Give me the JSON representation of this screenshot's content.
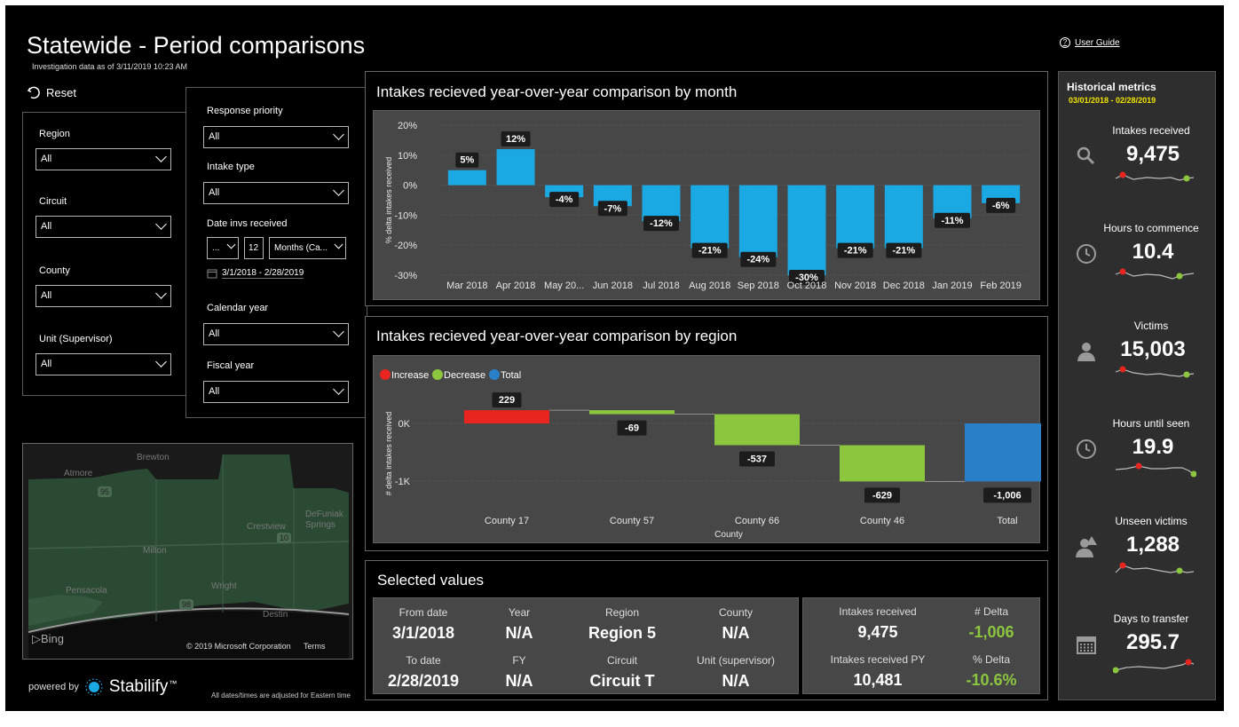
{
  "header": {
    "title": "Statewide - Period comparisons",
    "subtitle": "Investigation data as of 3/11/2019 10:23 AM",
    "user_guide": "User Guide",
    "reset": "Reset"
  },
  "filters_left": [
    {
      "label": "Region",
      "value": "All"
    },
    {
      "label": "Circuit",
      "value": "All"
    },
    {
      "label": "County",
      "value": "All"
    },
    {
      "label": "Unit (Supervisor)",
      "value": "All"
    }
  ],
  "filters_right": {
    "response_priority": {
      "label": "Response priority",
      "value": "All"
    },
    "intake_type": {
      "label": "Intake type",
      "value": "All"
    },
    "date_received": {
      "label": "Date invs received",
      "mode": "...",
      "count": "12",
      "unit": "Months (Ca...",
      "range": "3/1/2018 - 2/28/2019"
    },
    "calendar_year": {
      "label": "Calendar year",
      "value": "All"
    },
    "fiscal_year": {
      "label": "Fiscal year",
      "value": "All"
    }
  },
  "map": {
    "labels": [
      "Brewton",
      "Atmore",
      "Crestview",
      "DeFuniak Springs",
      "Milton",
      "Pensacola",
      "Wright",
      "Destin"
    ],
    "route_labels": [
      "95",
      "10",
      "98"
    ],
    "bing": "Bing",
    "copyright": "© 2019 Microsoft Corporation",
    "terms": "Terms"
  },
  "footer": {
    "powered_by": "powered by",
    "brand": "Stabilify",
    "brand_mark": "™",
    "note": "All dates/times are adjusted for Eastern time"
  },
  "colors": {
    "bar_blue": "#1ba9e3",
    "increase": "#e8251f",
    "decrease": "#8cc63f",
    "total": "#2980c8",
    "delta_green": "#8cc63f",
    "period_yellow": "#f2e600"
  },
  "chart_month": {
    "title": "Intakes recieved year-over-year comparison by month",
    "chart_data": {
      "type": "bar",
      "ylabel": "% delta intakes received",
      "ylim": [
        -30,
        20
      ],
      "yticks": [
        "20%",
        "10%",
        "0%",
        "-10%",
        "-20%",
        "-30%"
      ],
      "categories": [
        "Mar 2018",
        "Apr 2018",
        "May 20...",
        "Jun 2018",
        "Jul 2018",
        "Aug 2018",
        "Sep 2018",
        "Oct 2018",
        "Nov 2018",
        "Dec 2018",
        "Jan 2019",
        "Feb 2019"
      ],
      "values": [
        5,
        12,
        -4,
        -7,
        -12,
        -21,
        -24,
        -30,
        -21,
        -21,
        -11,
        -6
      ],
      "labels": [
        "5%",
        "12%",
        "-4%",
        "-7%",
        "-12%",
        "-21%",
        "-24%",
        "-30%",
        "-21%",
        "-21%",
        "-11%",
        "-6%"
      ]
    }
  },
  "chart_region": {
    "title": "Intakes recieved year-over-year comparison by region",
    "chart_data": {
      "type": "bar",
      "subtype": "waterfall",
      "xlabel": "County",
      "ylabel": "# delta intakes received",
      "ylim": [
        -1200,
        300
      ],
      "yticks": [
        "0K",
        "-1K"
      ],
      "legend": [
        "Increase",
        "Decrease",
        "Total"
      ],
      "categories": [
        "County 17",
        "County 57",
        "County 66",
        "County 46",
        "Total"
      ],
      "values": [
        229,
        -69,
        -537,
        -629,
        -1006
      ],
      "labels": [
        "229",
        "-69",
        "-537",
        "-629",
        "-1,006"
      ],
      "kinds": [
        "increase",
        "decrease",
        "decrease",
        "decrease",
        "total"
      ]
    }
  },
  "selected_values": {
    "title": "Selected values",
    "left": [
      {
        "label": "From date",
        "value": "3/1/2018"
      },
      {
        "label": "Year",
        "value": "N/A"
      },
      {
        "label": "Region",
        "value": "Region 5"
      },
      {
        "label": "County",
        "value": "N/A"
      },
      {
        "label": "To date",
        "value": "2/28/2019"
      },
      {
        "label": "FY",
        "value": "N/A"
      },
      {
        "label": "Circuit",
        "value": "Circuit T"
      },
      {
        "label": "Unit (supervisor)",
        "value": "N/A"
      }
    ],
    "right": [
      {
        "label": "Intakes received",
        "value": "9,475"
      },
      {
        "label": "# Delta",
        "value": "-1,006"
      },
      {
        "label": "Intakes received PY",
        "value": "10,481"
      },
      {
        "label": "% Delta",
        "value": "-10.6%"
      }
    ]
  },
  "historical": {
    "title": "Historical metrics",
    "period": "03/01/2018 - 02/28/2019",
    "metrics": [
      {
        "label": "Intakes received",
        "value": "9,475",
        "icon": "search-icon"
      },
      {
        "label": "Hours to commence",
        "value": "10.4",
        "icon": "clock-icon"
      },
      {
        "label": "Victims",
        "value": "15,003",
        "icon": "person-icon"
      },
      {
        "label": "Hours until seen",
        "value": "19.9",
        "icon": "clock-icon"
      },
      {
        "label": "Unseen victims",
        "value": "1,288",
        "icon": "person-alert-icon"
      },
      {
        "label": "Days to transfer",
        "value": "295.7",
        "icon": "calendar-icon"
      }
    ]
  }
}
